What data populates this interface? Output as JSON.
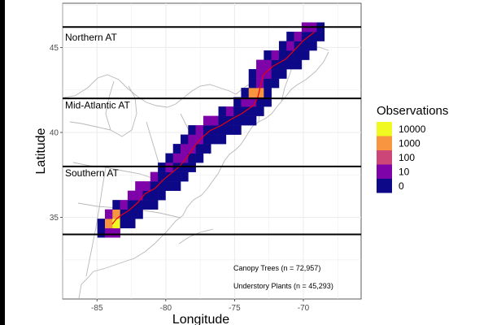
{
  "map": {
    "xlabel": "Longitude",
    "ylabel": "Latitude",
    "x_ticks": [
      {
        "value": -85,
        "label": "-85"
      },
      {
        "value": -80,
        "label": "-80"
      },
      {
        "value": -75,
        "label": "-75"
      },
      {
        "value": -70,
        "label": "-70"
      }
    ],
    "y_ticks": [
      {
        "value": 35,
        "label": "35"
      },
      {
        "value": 40,
        "label": "40"
      },
      {
        "value": 45,
        "label": "45"
      }
    ],
    "xlim": [
      -87.5,
      -65.8
    ],
    "ylim": [
      30.2,
      47.6
    ],
    "grid": true,
    "region_lines": [
      34,
      38,
      42,
      46.2
    ],
    "regions": [
      {
        "label": "Northern AT",
        "lat_label": 45.6
      },
      {
        "label": "Mid-Atlantic AT",
        "lat_label": 41.6
      },
      {
        "label": "Southern AT",
        "lat_label": 37.6
      }
    ],
    "annotations": [
      "Canopy Trees (n = 72,957)",
      "Understory Plants (n = 45,293)"
    ],
    "trail_color": "#e8000b",
    "trail_path": [
      [
        -83.9,
        34.6
      ],
      [
        -83.6,
        34.9
      ],
      [
        -83.3,
        35.1
      ],
      [
        -82.7,
        35.4
      ],
      [
        -82.0,
        35.9
      ],
      [
        -81.5,
        36.4
      ],
      [
        -80.8,
        36.7
      ],
      [
        -80.2,
        37.2
      ],
      [
        -79.6,
        37.6
      ],
      [
        -79.0,
        38.0
      ],
      [
        -78.4,
        38.6
      ],
      [
        -78.0,
        39.1
      ],
      [
        -77.5,
        39.6
      ],
      [
        -76.8,
        40.1
      ],
      [
        -76.0,
        40.4
      ],
      [
        -75.2,
        40.8
      ],
      [
        -74.5,
        41.1
      ],
      [
        -73.6,
        41.6
      ],
      [
        -73.3,
        42.1
      ],
      [
        -73.1,
        42.8
      ],
      [
        -72.9,
        43.4
      ],
      [
        -72.2,
        43.9
      ],
      [
        -71.3,
        44.3
      ],
      [
        -70.7,
        44.8
      ],
      [
        -70.0,
        45.4
      ],
      [
        -69.2,
        45.9
      ]
    ]
  },
  "legend": {
    "title": "Observations",
    "items": [
      {
        "label": "10000",
        "color": "#f0f921"
      },
      {
        "label": "1000",
        "color": "#f89540"
      },
      {
        "label": "100",
        "color": "#cc4778"
      },
      {
        "label": "10",
        "color": "#7e03a8"
      },
      {
        "label": "0",
        "color": "#0d0887"
      }
    ]
  },
  "colors": {
    "outline": "#b8b8b8",
    "grid": "#ebebeb",
    "region_line": "#000000"
  }
}
